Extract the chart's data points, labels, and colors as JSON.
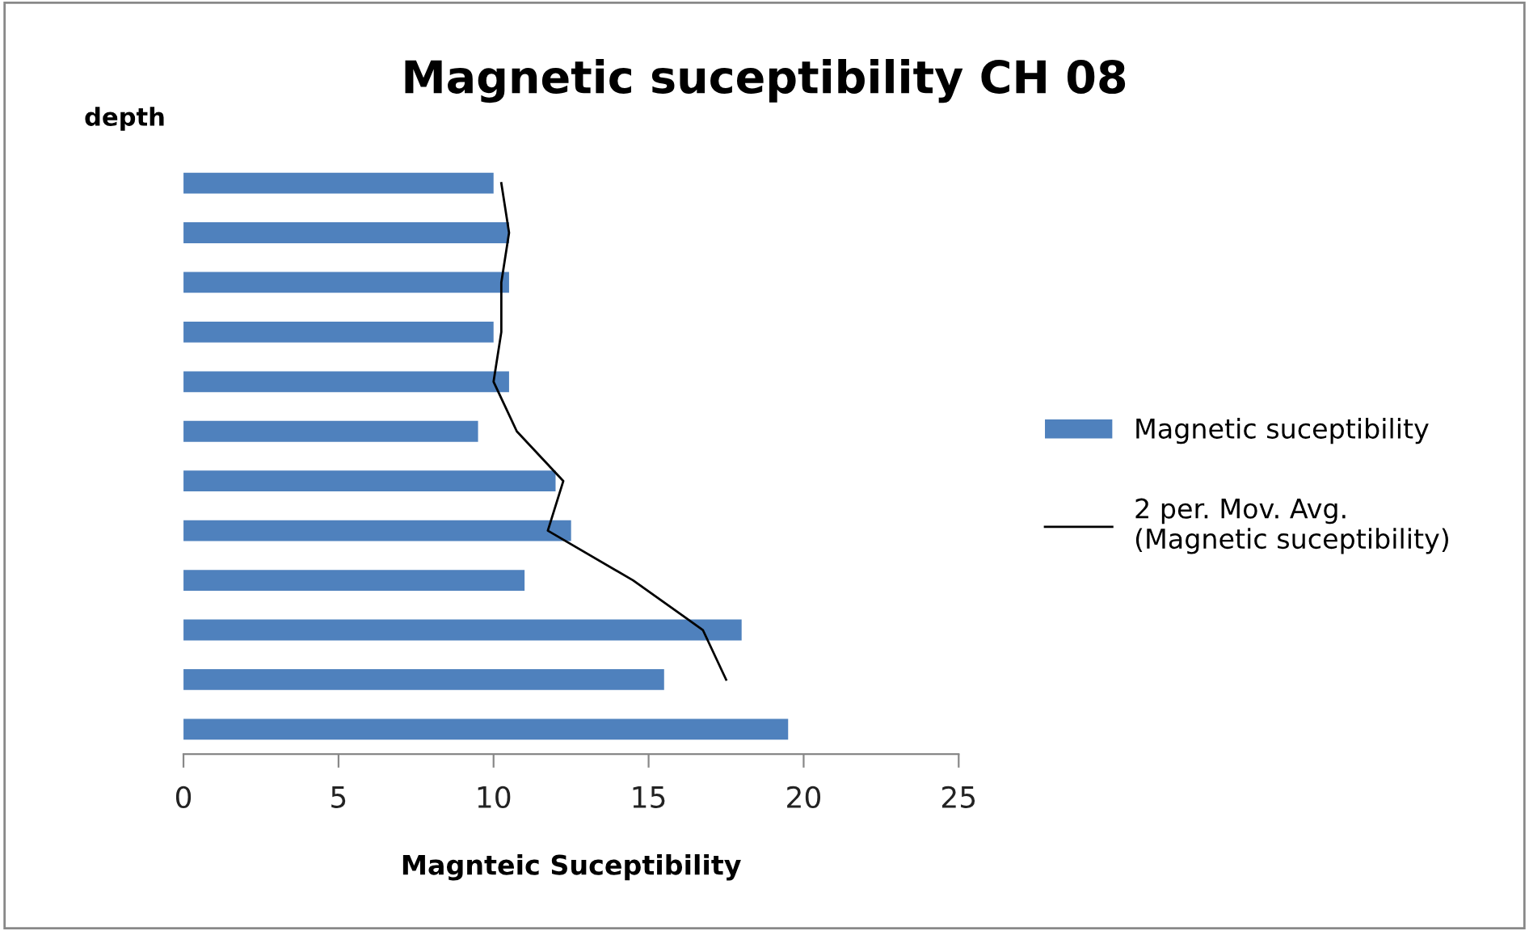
{
  "chart_data": [
    {
      "type": "bar",
      "orientation": "horizontal",
      "title": "Magnetic suceptibility CH 08",
      "ylabel": "depth",
      "xlabel": "Magnteic Suceptibility",
      "categories": [
        null,
        null,
        null,
        null,
        null,
        null,
        null,
        null,
        null,
        null,
        null,
        null
      ],
      "series": [
        {
          "name": "Magnetic suceptibility",
          "color": "#4f81bd",
          "values": [
            10,
            10.5,
            10.5,
            10,
            10.5,
            9.5,
            12,
            12.5,
            11,
            18,
            15.5,
            19.5
          ]
        }
      ],
      "xlim": [
        0,
        25
      ],
      "xticks": [
        0,
        5,
        10,
        15,
        20,
        25
      ],
      "legend": "right"
    },
    {
      "type": "line",
      "orientation": "horizontal",
      "categories": [
        null,
        null,
        null,
        null,
        null,
        null,
        null,
        null,
        null,
        null,
        null
      ],
      "series": [
        {
          "name": "2 per. Mov. Avg.\n(Magnetic suceptibility)",
          "color": "#000000",
          "values": [
            10.25,
            10.5,
            10.25,
            10.25,
            10,
            10.75,
            12.25,
            11.75,
            14.5,
            16.75,
            17.5
          ]
        }
      ],
      "xlim": [
        0,
        25
      ],
      "xticks": [
        0,
        5,
        10,
        15,
        20,
        25
      ],
      "tick_labels": false,
      "line_style": "solid",
      "legend": "right"
    }
  ]
}
